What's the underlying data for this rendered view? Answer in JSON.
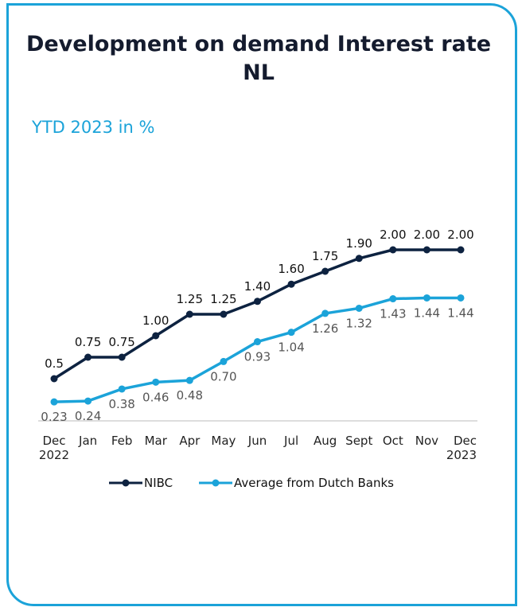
{
  "chart_data": {
    "type": "line",
    "title": "Development on demand Interest rate NL",
    "subtitle": "YTD 2023 in %",
    "categories": [
      "Dec 2022",
      "Jan",
      "Feb",
      "Mar",
      "Apr",
      "May",
      "Jun",
      "Jul",
      "Aug",
      "Sept",
      "Oct",
      "Nov",
      "Dec 2023"
    ],
    "ylim": [
      0,
      2
    ],
    "series": [
      {
        "name": "NIBC",
        "color": "#0d2240",
        "values": [
          0.5,
          0.75,
          0.75,
          1.0,
          1.25,
          1.25,
          1.4,
          1.6,
          1.75,
          1.9,
          2.0,
          2.0,
          2.0
        ],
        "value_labels": [
          "0.5",
          "0.75",
          "0.75",
          "1.00",
          "1.25",
          "1.25",
          "1.40",
          "1.60",
          "1.75",
          "1.90",
          "2.00",
          "2.00",
          "2.00"
        ]
      },
      {
        "name": "Average from Dutch Banks",
        "color": "#1ba3d9",
        "values": [
          0.23,
          0.24,
          0.38,
          0.46,
          0.48,
          0.7,
          0.93,
          1.04,
          1.26,
          1.32,
          1.43,
          1.44,
          1.44
        ],
        "value_labels": [
          "0.23",
          "0.24",
          "0.38",
          "0.46",
          "0.48",
          "0.70",
          "0.93",
          "1.04",
          "1.26",
          "1.32",
          "1.43",
          "1.44",
          "1.44"
        ]
      }
    ]
  }
}
